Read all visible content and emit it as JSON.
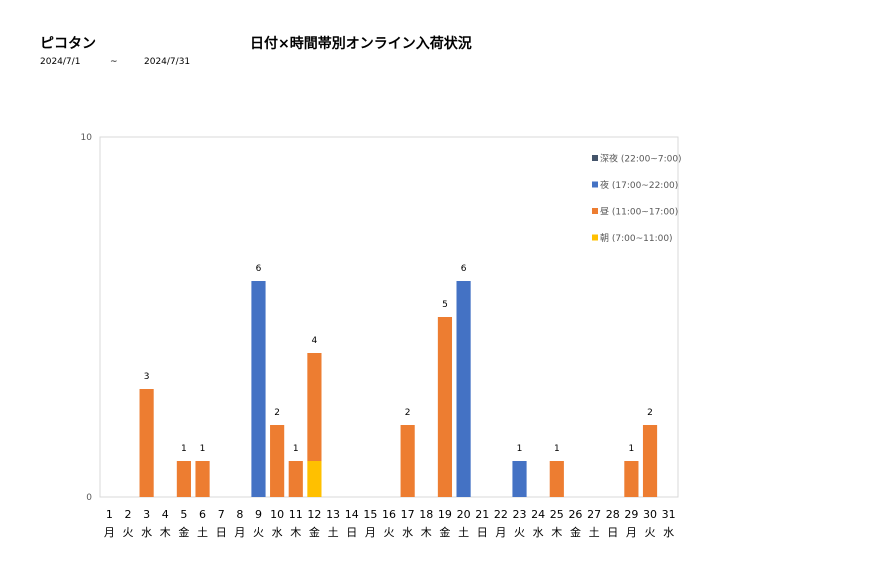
{
  "header": {
    "shop_name": "ピコタン",
    "title": "日付×時間帯別オンライン入荷状況",
    "date_from": "2024/7/1",
    "date_sep": "~",
    "date_to": "2024/7/31"
  },
  "chart_data": {
    "type": "bar",
    "stacked": true,
    "ylim": [
      0,
      10
    ],
    "y_ticks": [
      "0",
      "10"
    ],
    "categories": [
      "1",
      "2",
      "3",
      "4",
      "5",
      "6",
      "7",
      "8",
      "9",
      "10",
      "11",
      "12",
      "13",
      "14",
      "15",
      "16",
      "17",
      "18",
      "19",
      "20",
      "21",
      "22",
      "23",
      "24",
      "25",
      "26",
      "27",
      "28",
      "29",
      "30",
      "31"
    ],
    "weekdays": [
      "月",
      "火",
      "水",
      "木",
      "金",
      "土",
      "日",
      "月",
      "火",
      "水",
      "木",
      "金",
      "土",
      "日",
      "月",
      "火",
      "水",
      "木",
      "金",
      "土",
      "日",
      "月",
      "火",
      "水",
      "木",
      "金",
      "土",
      "日",
      "月",
      "火",
      "水"
    ],
    "series": [
      {
        "name": "朝 (7:00~11:00)",
        "color": "#FFC000",
        "values": [
          0,
          0,
          0,
          0,
          0,
          0,
          0,
          0,
          0,
          0,
          0,
          1,
          0,
          0,
          0,
          0,
          0,
          0,
          0,
          0,
          0,
          0,
          0,
          0,
          0,
          0,
          0,
          0,
          0,
          0,
          0
        ]
      },
      {
        "name": "昼 (11:00~17:00)",
        "color": "#ED7D31",
        "values": [
          0,
          0,
          3,
          0,
          1,
          1,
          0,
          0,
          0,
          2,
          1,
          3,
          0,
          0,
          0,
          0,
          2,
          0,
          5,
          0,
          0,
          0,
          0,
          0,
          1,
          0,
          0,
          0,
          1,
          2,
          0
        ]
      },
      {
        "name": "夜 (17:00~22:00)",
        "color": "#4472C4",
        "values": [
          0,
          0,
          0,
          0,
          0,
          0,
          0,
          0,
          6,
          0,
          0,
          0,
          0,
          0,
          0,
          0,
          0,
          0,
          0,
          6,
          0,
          0,
          1,
          0,
          0,
          0,
          0,
          0,
          0,
          0,
          0
        ]
      },
      {
        "name": "深夜 (22:00~7:00)",
        "color": "#44546A",
        "values": [
          0,
          0,
          0,
          0,
          0,
          0,
          0,
          0,
          0,
          0,
          0,
          0,
          0,
          0,
          0,
          0,
          0,
          0,
          0,
          0,
          0,
          0,
          0,
          0,
          0,
          0,
          0,
          0,
          0,
          0,
          0
        ]
      }
    ],
    "totals": [
      "",
      "",
      "3",
      "",
      "1",
      "1",
      "",
      "",
      "6",
      "2",
      "1",
      "4",
      "",
      "",
      "",
      "",
      "2",
      "",
      "5",
      "6",
      "",
      "",
      "1",
      "",
      "1",
      "",
      "",
      "",
      "1",
      "2",
      ""
    ],
    "legend_order": [
      3,
      2,
      1,
      0
    ],
    "legend_position": "top-right",
    "grid": false
  }
}
